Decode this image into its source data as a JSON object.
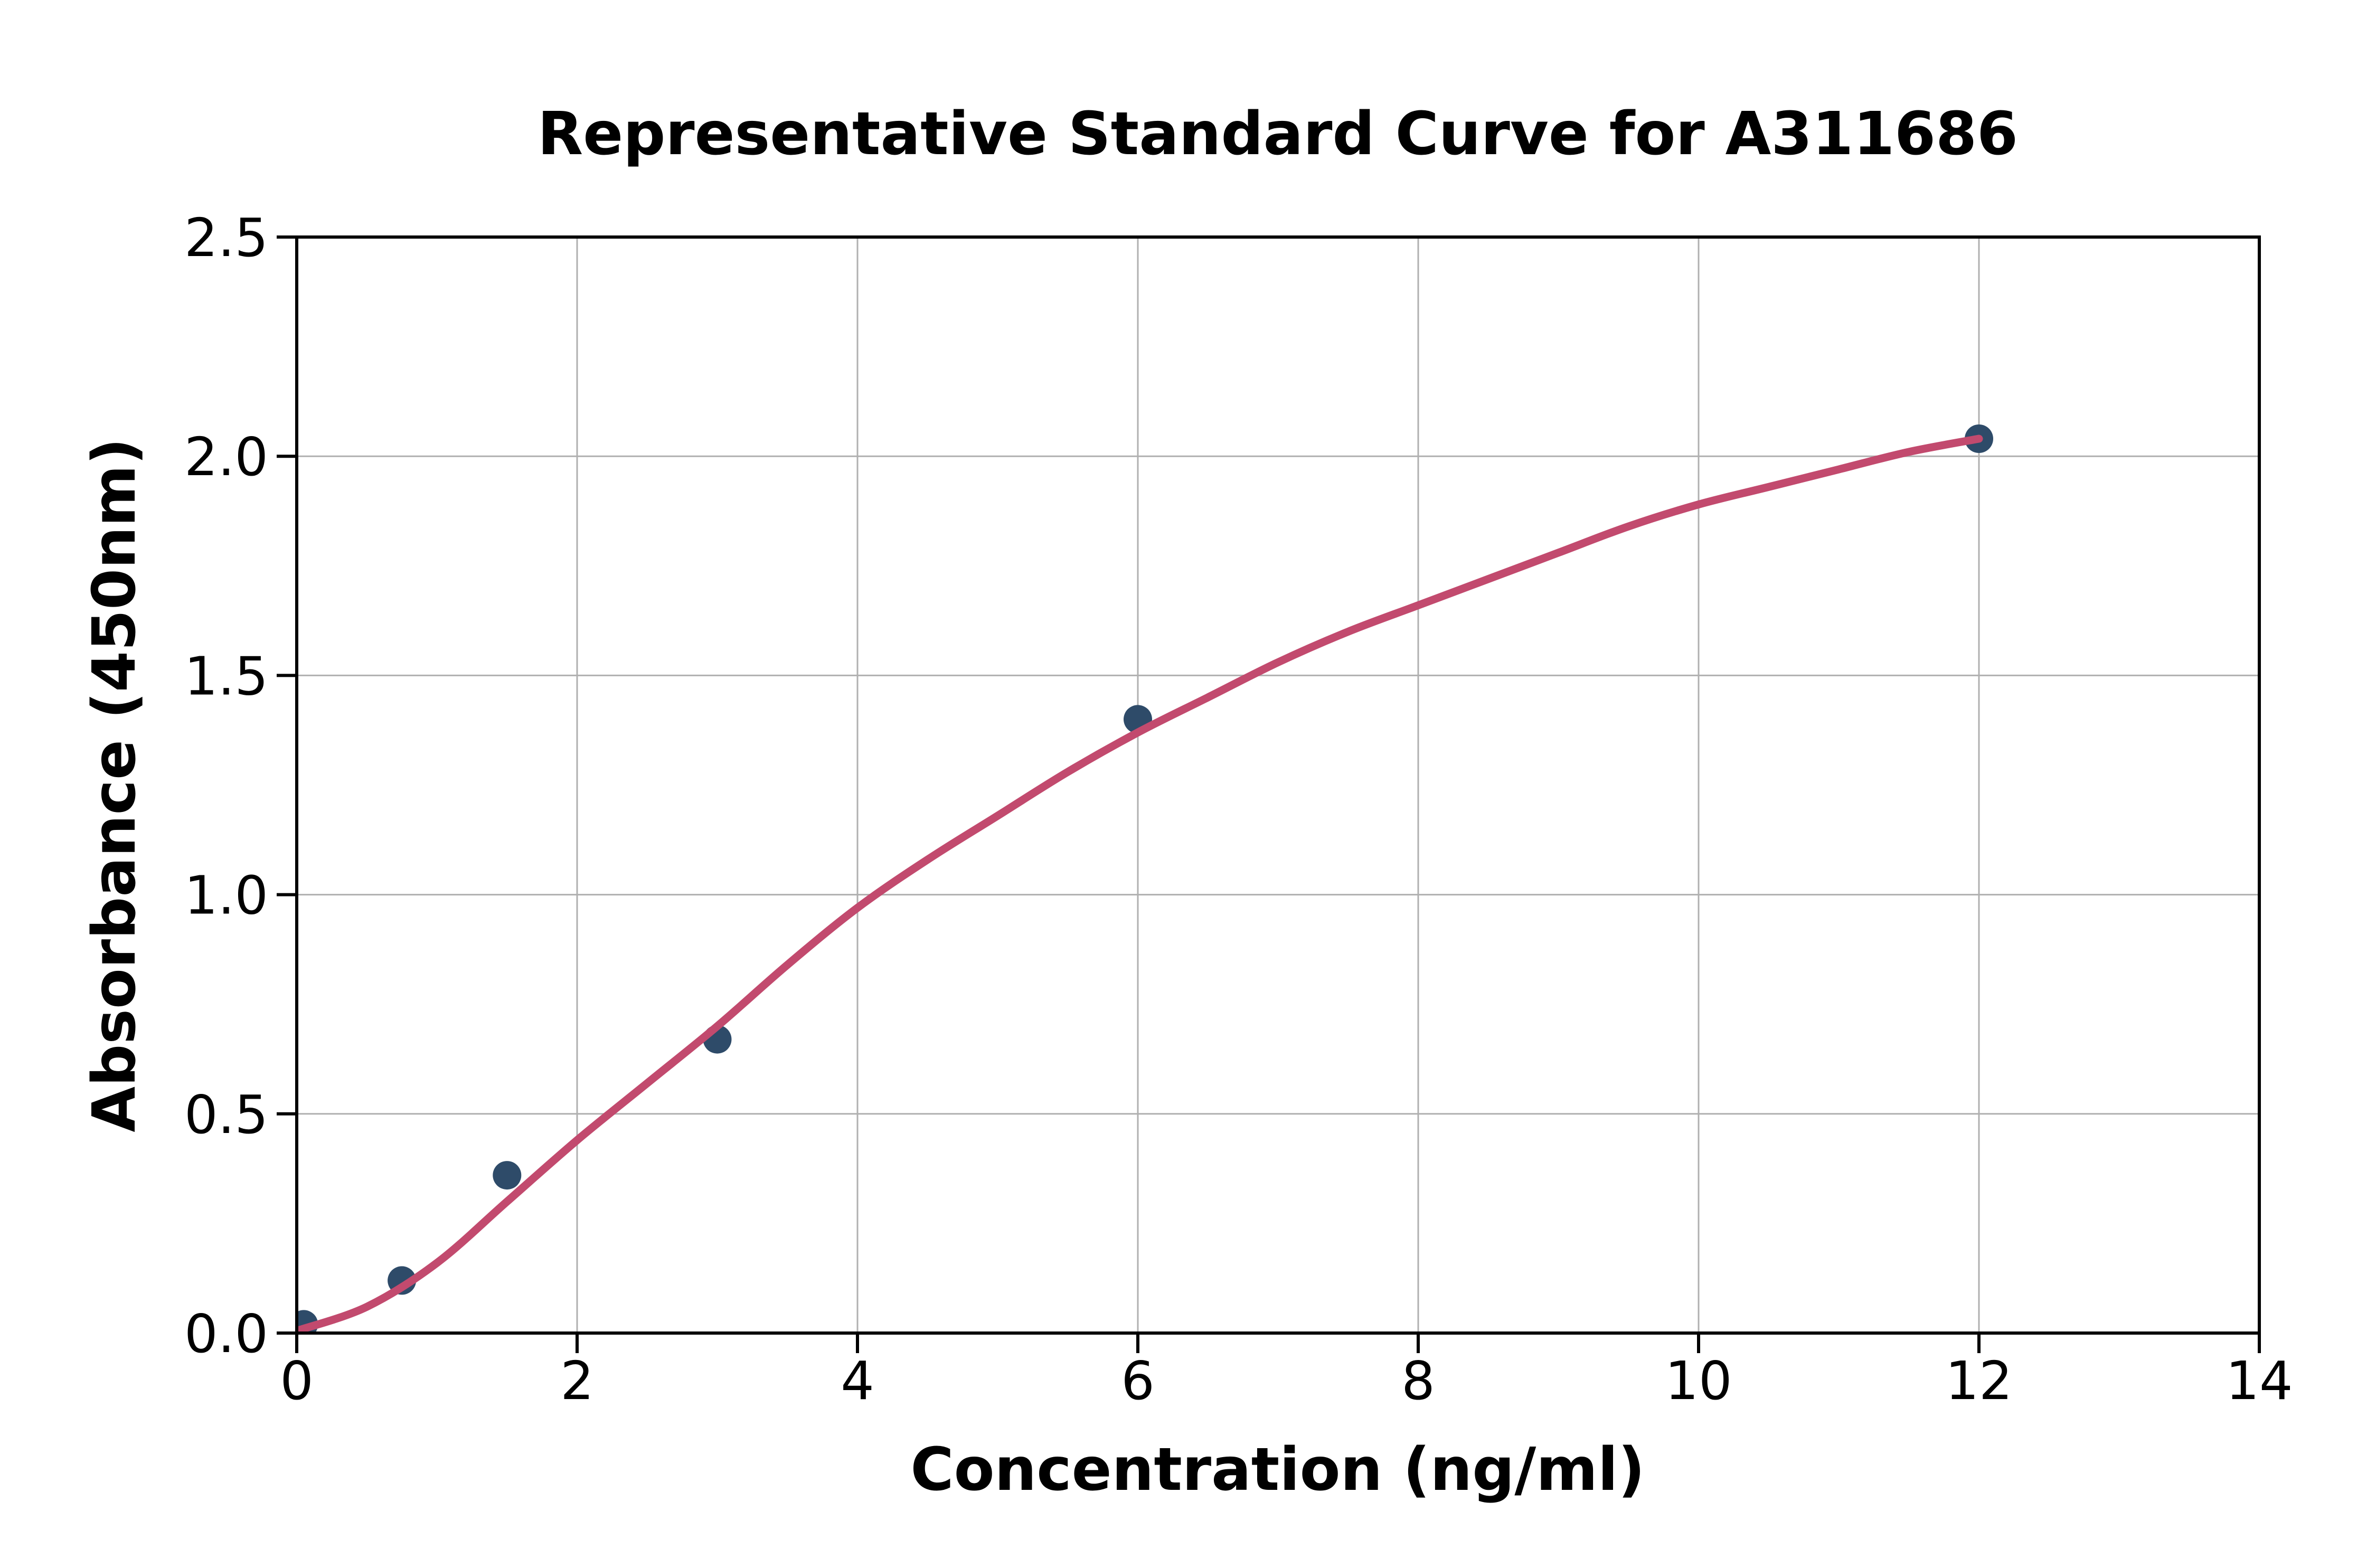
{
  "chart_data": {
    "type": "scatter",
    "title": "Representative Standard Curve for A311686",
    "xlabel": "Concentration (ng/ml)",
    "ylabel": "Absorbance (450nm)",
    "xlim": [
      0,
      14
    ],
    "ylim": [
      0,
      2.5
    ],
    "xticks": [
      0,
      2,
      4,
      6,
      8,
      10,
      12,
      14
    ],
    "xtick_labels": [
      "0",
      "2",
      "4",
      "6",
      "8",
      "10",
      "12",
      "14"
    ],
    "yticks": [
      0,
      0.5,
      1,
      1.5,
      2,
      2.5
    ],
    "ytick_labels": [
      "0.0",
      "0.5",
      "1.0",
      "1.5",
      "2.0",
      "2.5"
    ],
    "grid": true,
    "legend": false,
    "series": [
      {
        "name": "standard-points",
        "type": "scatter",
        "color": "#2e4b69",
        "marker_radius": 27,
        "points": [
          [
            0.05,
            0.02
          ],
          [
            0.75,
            0.12
          ],
          [
            1.5,
            0.36
          ],
          [
            3,
            0.67
          ],
          [
            6,
            1.4
          ],
          [
            12,
            2.04
          ]
        ]
      },
      {
        "name": "fitted-curve",
        "type": "line",
        "color": "#c24a6e",
        "width": 15,
        "points": [
          [
            0,
            0.005
          ],
          [
            0.5,
            0.06
          ],
          [
            1,
            0.16
          ],
          [
            1.5,
            0.3
          ],
          [
            2,
            0.44
          ],
          [
            2.5,
            0.57
          ],
          [
            3,
            0.7
          ],
          [
            3.5,
            0.84
          ],
          [
            4,
            0.97
          ],
          [
            4.5,
            1.08
          ],
          [
            5,
            1.18
          ],
          [
            5.5,
            1.28
          ],
          [
            6,
            1.37
          ],
          [
            6.5,
            1.45
          ],
          [
            7,
            1.53
          ],
          [
            7.5,
            1.6
          ],
          [
            8,
            1.66
          ],
          [
            8.5,
            1.72
          ],
          [
            9,
            1.78
          ],
          [
            9.5,
            1.84
          ],
          [
            10,
            1.89
          ],
          [
            10.5,
            1.93
          ],
          [
            11,
            1.97
          ],
          [
            11.5,
            2.01
          ],
          [
            12,
            2.04
          ]
        ]
      }
    ]
  },
  "colors": {
    "background": "#ffffff",
    "grid": "#b0b0b0",
    "spine": "#000000",
    "tick": "#000000",
    "text": "#000000",
    "curve": "#c24a6e",
    "point": "#2e4b69"
  }
}
